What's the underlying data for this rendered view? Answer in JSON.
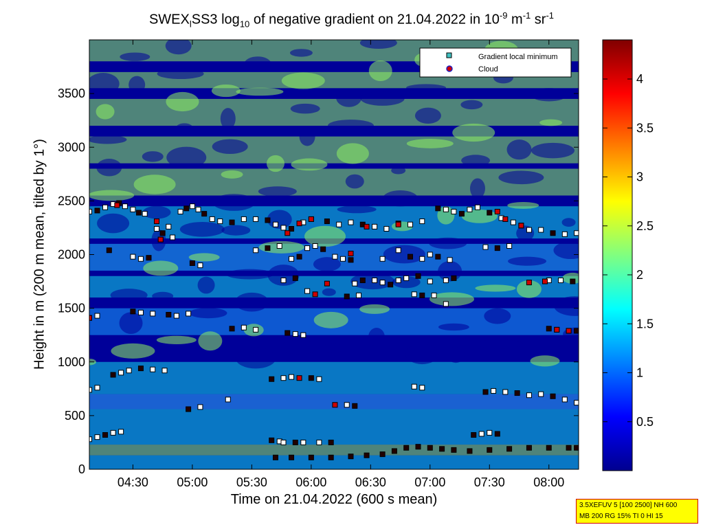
{
  "title": {
    "part1": "SWEX",
    "sub1": "l",
    "part2": "SS3 log",
    "sub2": "10",
    "part3": " of negative gradient on 21.04.2022 in 10",
    "sup1": "-9",
    "part4": " m",
    "sup2": "-1",
    "part5": " sr",
    "sup3": "-1"
  },
  "chart_data": {
    "type": "heatmap",
    "xlabel": "Time on 21.04.2022 (600 s mean)",
    "ylabel": "Height in m (200 m mean, tilted by 1°)",
    "x_ticks": [
      "04:30",
      "05:00",
      "05:30",
      "06:00",
      "06:30",
      "07:00",
      "07:30",
      "08:00"
    ],
    "x_tick_minutes": [
      270,
      300,
      330,
      360,
      390,
      420,
      450,
      480
    ],
    "xlim_minutes": [
      248,
      495
    ],
    "y_ticks": [
      0,
      500,
      1000,
      1500,
      2000,
      2500,
      3000,
      3500
    ],
    "ylim": [
      0,
      4000
    ],
    "colorbar": {
      "ticks": [
        0.5,
        1,
        1.5,
        2,
        2.5,
        3,
        3.5,
        4
      ],
      "range": [
        0,
        4.4
      ],
      "colormap": [
        "#00008f",
        "#0000ff",
        "#0080ff",
        "#00ffff",
        "#80ff80",
        "#ffff00",
        "#ff8000",
        "#ff0000",
        "#800000"
      ]
    },
    "legend": {
      "position": "top-right",
      "entries": [
        {
          "label": "Gradient local minimum",
          "marker": "square",
          "color": "#40c0c0"
        },
        {
          "label": "Cloud",
          "marker": "circle",
          "color": "#d00000"
        }
      ]
    },
    "series": [
      {
        "name": "Gradient local minimum",
        "points": [
          [
            248,
            2400
          ],
          [
            252,
            2410
          ],
          [
            256,
            2440
          ],
          [
            260,
            2470
          ],
          [
            263,
            2480
          ],
          [
            266,
            2450
          ],
          [
            270,
            2420
          ],
          [
            273,
            2390
          ],
          [
            276,
            2380
          ],
          [
            282,
            2240
          ],
          [
            285,
            2200
          ],
          [
            288,
            2260
          ],
          [
            294,
            2400
          ],
          [
            297,
            2430
          ],
          [
            300,
            2450
          ],
          [
            303,
            2420
          ],
          [
            306,
            2380
          ],
          [
            310,
            2330
          ],
          [
            314,
            2310
          ],
          [
            320,
            2300
          ],
          [
            326,
            2330
          ],
          [
            332,
            2330
          ],
          [
            338,
            2320
          ],
          [
            342,
            2280
          ],
          [
            346,
            2250
          ],
          [
            350,
            2240
          ],
          [
            356,
            2300
          ],
          [
            360,
            2330
          ],
          [
            368,
            2310
          ],
          [
            374,
            2280
          ],
          [
            380,
            2300
          ],
          [
            386,
            2280
          ],
          [
            392,
            2260
          ],
          [
            398,
            2240
          ],
          [
            404,
            2290
          ],
          [
            410,
            2280
          ],
          [
            416,
            2310
          ],
          [
            424,
            2430
          ],
          [
            428,
            2420
          ],
          [
            432,
            2400
          ],
          [
            436,
            2380
          ],
          [
            440,
            2420
          ],
          [
            444,
            2440
          ],
          [
            450,
            2390
          ],
          [
            456,
            2340
          ],
          [
            462,
            2300
          ],
          [
            466,
            2270
          ],
          [
            470,
            2230
          ],
          [
            476,
            2230
          ],
          [
            482,
            2200
          ],
          [
            488,
            2190
          ],
          [
            494,
            2200
          ],
          [
            258,
            2040
          ],
          [
            270,
            1980
          ],
          [
            274,
            1960
          ],
          [
            278,
            1970
          ],
          [
            284,
            2140
          ],
          [
            290,
            2160
          ],
          [
            300,
            1920
          ],
          [
            304,
            1900
          ],
          [
            332,
            2040
          ],
          [
            338,
            2060
          ],
          [
            344,
            2080
          ],
          [
            350,
            1960
          ],
          [
            354,
            1980
          ],
          [
            358,
            2060
          ],
          [
            362,
            2080
          ],
          [
            366,
            2050
          ],
          [
            372,
            1980
          ],
          [
            376,
            1960
          ],
          [
            380,
            1950
          ],
          [
            396,
            1960
          ],
          [
            404,
            2040
          ],
          [
            410,
            1980
          ],
          [
            416,
            1960
          ],
          [
            420,
            2000
          ],
          [
            424,
            1980
          ],
          [
            430,
            1950
          ],
          [
            448,
            2070
          ],
          [
            454,
            2060
          ],
          [
            460,
            2080
          ],
          [
            346,
            1760
          ],
          [
            352,
            1780
          ],
          [
            358,
            1660
          ],
          [
            382,
            1730
          ],
          [
            386,
            1760
          ],
          [
            392,
            1760
          ],
          [
            396,
            1740
          ],
          [
            400,
            1720
          ],
          [
            404,
            1760
          ],
          [
            408,
            1780
          ],
          [
            414,
            1800
          ],
          [
            420,
            1750
          ],
          [
            428,
            1760
          ],
          [
            432,
            1780
          ],
          [
            480,
            1760
          ],
          [
            486,
            1760
          ],
          [
            492,
            1750
          ],
          [
            248,
            1410
          ],
          [
            252,
            1430
          ],
          [
            270,
            1470
          ],
          [
            274,
            1460
          ],
          [
            280,
            1450
          ],
          [
            288,
            1440
          ],
          [
            292,
            1430
          ],
          [
            298,
            1450
          ],
          [
            320,
            1310
          ],
          [
            326,
            1320
          ],
          [
            332,
            1300
          ],
          [
            348,
            1270
          ],
          [
            352,
            1260
          ],
          [
            356,
            1250
          ],
          [
            378,
            1610
          ],
          [
            384,
            1620
          ],
          [
            412,
            1630
          ],
          [
            416,
            1620
          ],
          [
            422,
            1620
          ],
          [
            428,
            1540
          ],
          [
            480,
            1310
          ],
          [
            484,
            1300
          ],
          [
            490,
            1290
          ],
          [
            494,
            1290
          ],
          [
            248,
            740
          ],
          [
            252,
            760
          ],
          [
            260,
            880
          ],
          [
            264,
            900
          ],
          [
            268,
            920
          ],
          [
            274,
            940
          ],
          [
            280,
            930
          ],
          [
            286,
            920
          ],
          [
            340,
            840
          ],
          [
            346,
            850
          ],
          [
            350,
            860
          ],
          [
            360,
            850
          ],
          [
            364,
            840
          ],
          [
            378,
            600
          ],
          [
            382,
            590
          ],
          [
            412,
            770
          ],
          [
            416,
            760
          ],
          [
            448,
            720
          ],
          [
            452,
            730
          ],
          [
            458,
            720
          ],
          [
            464,
            710
          ],
          [
            470,
            690
          ],
          [
            476,
            700
          ],
          [
            482,
            680
          ],
          [
            488,
            650
          ],
          [
            494,
            620
          ],
          [
            298,
            560
          ],
          [
            304,
            580
          ],
          [
            318,
            650
          ],
          [
            340,
            270
          ],
          [
            344,
            260
          ],
          [
            346,
            250
          ],
          [
            352,
            250
          ],
          [
            356,
            250
          ],
          [
            364,
            250
          ],
          [
            370,
            250
          ],
          [
            248,
            280
          ],
          [
            252,
            300
          ],
          [
            256,
            320
          ],
          [
            260,
            340
          ],
          [
            264,
            350
          ],
          [
            442,
            320
          ],
          [
            446,
            330
          ],
          [
            450,
            340
          ],
          [
            454,
            330
          ],
          [
            342,
            110
          ],
          [
            350,
            110
          ],
          [
            360,
            110
          ],
          [
            370,
            110
          ],
          [
            380,
            120
          ],
          [
            388,
            130
          ],
          [
            396,
            140
          ],
          [
            402,
            170
          ],
          [
            408,
            200
          ],
          [
            414,
            210
          ],
          [
            420,
            200
          ],
          [
            426,
            190
          ],
          [
            432,
            180
          ],
          [
            440,
            170
          ],
          [
            450,
            180
          ],
          [
            460,
            190
          ],
          [
            470,
            200
          ],
          [
            480,
            200
          ],
          [
            490,
            200
          ],
          [
            494,
            200
          ]
        ]
      },
      {
        "name": "Cloud",
        "points": [
          [
            262,
            2460
          ],
          [
            282,
            2310
          ],
          [
            348,
            2200
          ],
          [
            354,
            2290
          ],
          [
            388,
            2260
          ],
          [
            404,
            2280
          ],
          [
            454,
            2400
          ],
          [
            458,
            2330
          ],
          [
            466,
            2270
          ],
          [
            360,
            2330
          ],
          [
            380,
            2010
          ],
          [
            362,
            1630
          ],
          [
            368,
            1730
          ],
          [
            470,
            1740
          ],
          [
            478,
            1750
          ],
          [
            484,
            1300
          ],
          [
            490,
            1290
          ],
          [
            284,
            2140
          ],
          [
            354,
            850
          ],
          [
            372,
            600
          ],
          [
            248,
            1410
          ]
        ]
      }
    ]
  },
  "infobox": {
    "line1": "3.5XEFUV 5 [100 2500] NH 600",
    "line2": "MB 200 RG 15% TI 0 HI 15"
  },
  "colors": {
    "background": "#000099",
    "band_cyan": "#10d8e8",
    "band_green": "#90f060",
    "marker_fill": "#ffffff",
    "marker_dark": "#200000",
    "cloud_red": "#d00000"
  }
}
